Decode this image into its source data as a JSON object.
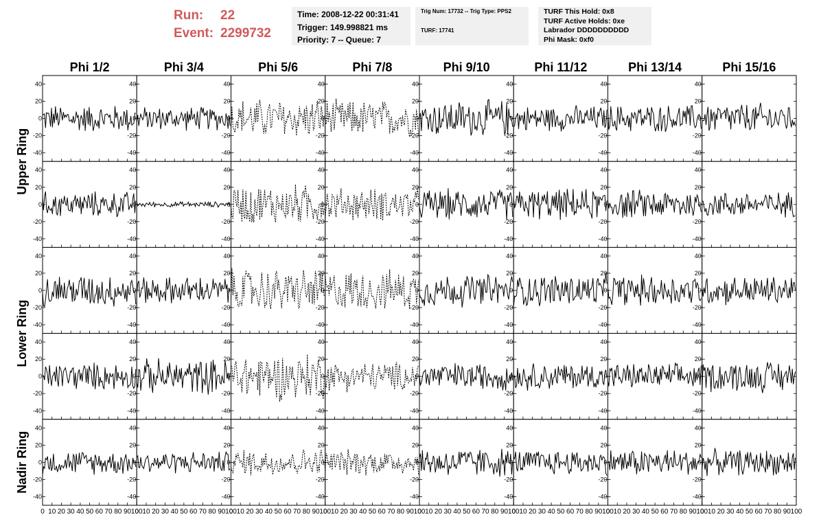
{
  "header": {
    "run_label": "Run:",
    "run_value": "22",
    "event_label": "Event:",
    "event_value": "2299732",
    "time": "Time: 2008-12-22 00:31:41",
    "trigger": "Trigger: 149.998821 ms",
    "priority_queue": "Priority: 7 -- Queue: 7",
    "trig_num_type": "Trig Num: 17732 -- Trig Type: PPS2",
    "turf": "TURF: 17741",
    "turf_this_hold": "TURF This Hold: 0x8",
    "turf_active_holds": "TURF Active Holds: 0xe",
    "labrador": "Labrador DDDDDDDDDD",
    "phi_mask": "Phi Mask: 0xf0"
  },
  "colors": {
    "header_red": "#d05a5a",
    "info_bg": "#f0f0f0",
    "trace": "#000000"
  },
  "chart_data": {
    "type": "line",
    "title": "",
    "columns": [
      "Phi 1/2",
      "Phi 3/4",
      "Phi 5/6",
      "Phi 7/8",
      "Phi 9/10",
      "Phi 11/12",
      "Phi 13/14",
      "Phi 15/16"
    ],
    "row_groups": [
      {
        "label": "Upper Ring",
        "rows": [
          0,
          1
        ]
      },
      {
        "label": "Lower Ring",
        "rows": [
          2,
          3
        ]
      },
      {
        "label": "Nadir Ring",
        "rows": [
          4
        ]
      }
    ],
    "rows": 5,
    "xlim": [
      0,
      100
    ],
    "ylim": [
      -50,
      50
    ],
    "x_ticks": [
      0,
      10,
      20,
      30,
      40,
      50,
      60,
      70,
      80,
      90,
      100
    ],
    "y_ticks": [
      -40,
      -20,
      0,
      20,
      40
    ],
    "samples_per_trace": 95,
    "dashed_columns": [
      2,
      3
    ],
    "amplitude_estimates": [
      [
        15,
        13,
        22,
        20,
        20,
        14,
        15,
        17
      ],
      [
        14,
        3,
        22,
        18,
        17,
        17,
        16,
        14
      ],
      [
        18,
        15,
        24,
        22,
        18,
        18,
        17,
        16
      ],
      [
        15,
        19,
        26,
        16,
        15,
        15,
        14,
        17
      ],
      [
        13,
        12,
        15,
        14,
        16,
        14,
        15,
        14
      ]
    ]
  }
}
